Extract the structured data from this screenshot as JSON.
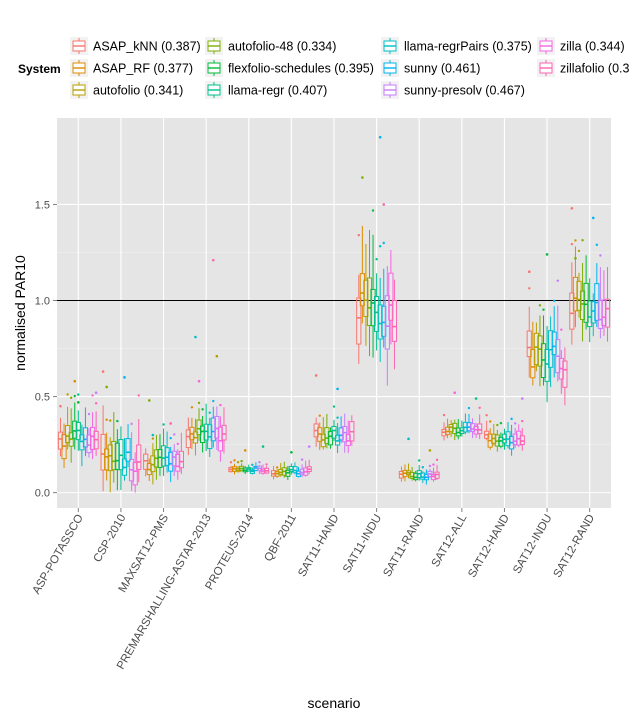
{
  "chart_data": {
    "type": "boxplot",
    "xlabel": "scenario",
    "ylabel": "normalised PAR10",
    "legend_title": "System",
    "legend_position": "top",
    "ylim": [
      -0.08,
      1.95
    ],
    "yticks": [
      0.0,
      0.5,
      1.0,
      1.5
    ],
    "ytick_labels": [
      "0.0",
      "0.5",
      "1.0",
      "1.5"
    ],
    "reference_line": 1.0,
    "grid": true,
    "categories": [
      "ASP-POTASSCO",
      "CSP-2010",
      "MAXSAT12-PMS",
      "PREMARSHALLING-ASTAR-2013",
      "PROTEUS-2014",
      "QBF-2011",
      "SAT11-HAND",
      "SAT11-INDU",
      "SAT11-RAND",
      "SAT12-ALL",
      "SAT12-HAND",
      "SAT12-INDU",
      "SAT12-RAND"
    ],
    "series": [
      {
        "name": "ASAP_kNN (0.387)",
        "color": "#F8766D"
      },
      {
        "name": "ASAP_RF (0.377)",
        "color": "#DE8C00"
      },
      {
        "name": "autofolio (0.341)",
        "color": "#B79F00"
      },
      {
        "name": "autofolio-48 (0.334)",
        "color": "#7CAE00"
      },
      {
        "name": "flexfolio-schedules (0.395)",
        "color": "#00BA38"
      },
      {
        "name": "llama-regr (0.407)",
        "color": "#00C08B"
      },
      {
        "name": "llama-regrPairs (0.375)",
        "color": "#00BFC4"
      },
      {
        "name": "sunny (0.461)",
        "color": "#00B4F0"
      },
      {
        "name": "sunny-presolv (0.467)",
        "color": "#C77CFF"
      },
      {
        "name": "zilla (0.344)",
        "color": "#F564E3"
      },
      {
        "name": "zillafolio (0.3",
        "color": "#FF64B0"
      }
    ],
    "groups": [
      {
        "median": 0.28,
        "spread": 0.1,
        "high_pts": [
          0.45,
          0.47,
          0.52,
          0.58
        ]
      },
      {
        "median": 0.17,
        "spread": 0.13,
        "high_pts": [
          0.55,
          0.6,
          0.63
        ]
      },
      {
        "median": 0.15,
        "spread": 0.08,
        "high_pts": [
          0.3,
          0.36,
          0.48
        ]
      },
      {
        "median": 0.3,
        "spread": 0.09,
        "high_pts": [
          0.58,
          0.71,
          0.81,
          1.21
        ]
      },
      {
        "median": 0.12,
        "spread": 0.02,
        "high_pts": [
          0.22,
          0.24
        ]
      },
      {
        "median": 0.11,
        "spread": 0.03,
        "high_pts": [
          0.21,
          0.24
        ]
      },
      {
        "median": 0.3,
        "spread": 0.07,
        "high_pts": [
          0.54,
          0.61
        ]
      },
      {
        "median": 0.95,
        "spread": 0.22,
        "high_pts": [
          1.5,
          1.64,
          1.85
        ]
      },
      {
        "median": 0.09,
        "spread": 0.03,
        "high_pts": [
          0.22,
          0.28
        ]
      },
      {
        "median": 0.33,
        "spread": 0.04,
        "high_pts": [
          0.49,
          0.52
        ]
      },
      {
        "median": 0.28,
        "spread": 0.05,
        "high_pts": [
          0.49
        ]
      },
      {
        "median": 0.7,
        "spread": 0.14,
        "high_pts": [
          1.15,
          1.24
        ]
      },
      {
        "median": 0.95,
        "spread": 0.14,
        "high_pts": [
          1.22,
          1.43,
          1.48
        ]
      }
    ]
  }
}
